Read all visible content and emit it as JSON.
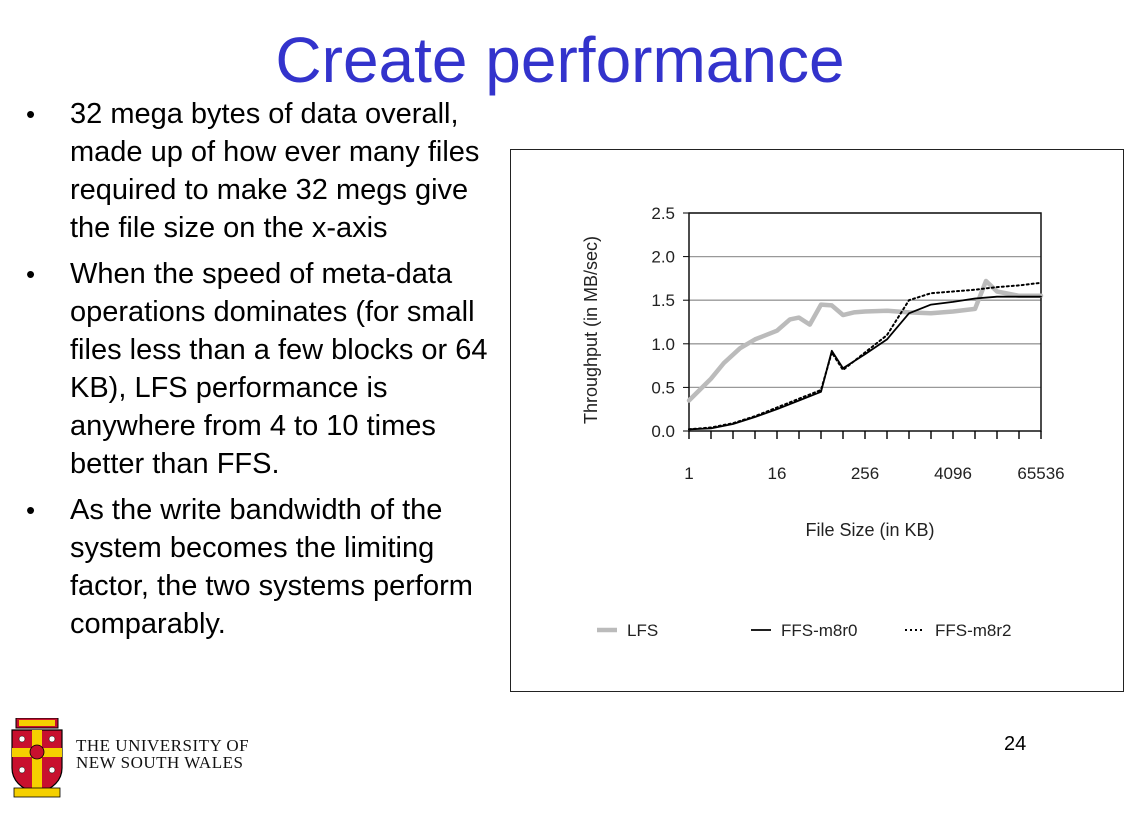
{
  "slide": {
    "title": "Create performance",
    "bullets": [
      "32 mega bytes of data overall, made up of how ever many files required to make 32 megs give the file size on the x-axis",
      "When the speed of meta-data operations dominates (for small files less than a few blocks or 64 KB), LFS performance is anywhere from 4 to 10 times better than FFS.",
      "As the write bandwidth of the system becomes the limiting factor, the two systems perform comparably."
    ],
    "bullet_glyph": "•",
    "page_number": "24"
  },
  "footer": {
    "university_line1": "THE UNIVERSITY OF",
    "university_line2": "NEW SOUTH WALES"
  },
  "chart_data": {
    "type": "line",
    "title": "",
    "xlabel": "File Size (in KB)",
    "ylabel": "Throughput (in MB/sec)",
    "x_scale": "log2",
    "x_ticks": [
      1,
      16,
      256,
      4096,
      65536
    ],
    "x_tick_labels": [
      "1",
      "16",
      "256",
      "4096",
      "65536"
    ],
    "xlim": [
      1,
      65536
    ],
    "y_ticks": [
      0.0,
      0.5,
      1.0,
      1.5,
      2.0,
      2.5
    ],
    "y_tick_labels": [
      "0.0",
      "0.5",
      "1.0",
      "1.5",
      "2.0",
      "2.5"
    ],
    "ylim": [
      0,
      2.5
    ],
    "grid": "horizontal",
    "legend_position": "bottom",
    "series": [
      {
        "name": "LFS",
        "color": "#bbbbbb",
        "style": "solid-thick",
        "x": [
          1,
          2,
          3,
          5,
          8,
          16,
          24,
          32,
          45,
          64,
          90,
          128,
          180,
          256,
          512,
          1024,
          2048,
          4096,
          8192,
          11585,
          16384,
          32768,
          65536
        ],
        "y": [
          0.35,
          0.6,
          0.78,
          0.95,
          1.05,
          1.15,
          1.28,
          1.3,
          1.22,
          1.45,
          1.44,
          1.33,
          1.36,
          1.37,
          1.38,
          1.36,
          1.35,
          1.37,
          1.4,
          1.72,
          1.6,
          1.55,
          1.55
        ]
      },
      {
        "name": "FFS-m8r0",
        "color": "#000000",
        "style": "solid",
        "x": [
          1,
          2,
          4,
          8,
          16,
          32,
          64,
          90,
          128,
          256,
          512,
          1024,
          2048,
          4096,
          8192,
          16384,
          32768,
          65536
        ],
        "y": [
          0.02,
          0.03,
          0.08,
          0.16,
          0.25,
          0.35,
          0.45,
          0.92,
          0.72,
          0.88,
          1.05,
          1.35,
          1.45,
          1.48,
          1.52,
          1.54,
          1.54,
          1.54
        ]
      },
      {
        "name": "FFS-m8r2",
        "color": "#000000",
        "style": "dotted",
        "x": [
          1,
          2,
          4,
          8,
          16,
          32,
          64,
          90,
          128,
          256,
          512,
          1024,
          2048,
          4096,
          8192,
          16384,
          32768,
          65536
        ],
        "y": [
          0.02,
          0.04,
          0.09,
          0.17,
          0.27,
          0.37,
          0.47,
          0.9,
          0.7,
          0.9,
          1.1,
          1.5,
          1.58,
          1.6,
          1.62,
          1.65,
          1.67,
          1.7
        ]
      }
    ]
  }
}
